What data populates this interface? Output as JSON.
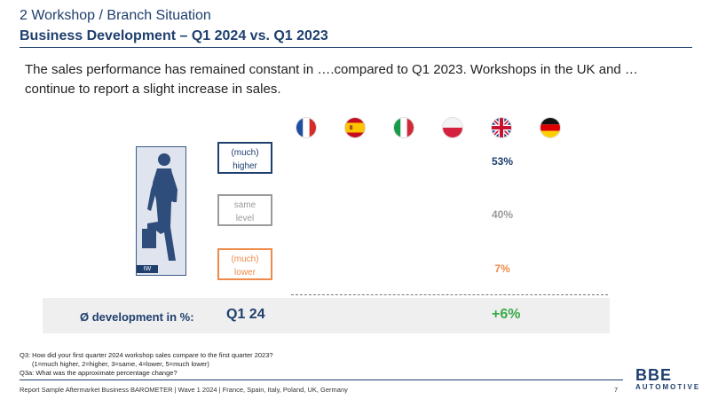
{
  "header": {
    "section_title": "2 Workshop / Branch Situation",
    "slide_title": "Business Development – Q1 2024 vs. Q1 2023"
  },
  "intro_text": "The sales performance has remained constant in ….compared to Q1 2023. Workshops in the UK and … continue to report a slight increase in sales.",
  "flags": [
    "france-flag-icon",
    "spain-flag-icon",
    "italy-flag-icon",
    "poland-flag-icon",
    "uk-flag-icon",
    "germany-flag-icon"
  ],
  "worker_figure": {
    "icon": "workshop-worker-icon",
    "tag": "IW"
  },
  "categories": [
    {
      "line1": "(much)",
      "line2": "higher",
      "value": "53%",
      "color": "#1f3f6e"
    },
    {
      "line1": "same",
      "line2": "level",
      "value": "40%",
      "color": "#9b9b9b"
    },
    {
      "line1": "(much)",
      "line2": "lower",
      "value": "7%",
      "color": "#ee8a4a"
    }
  ],
  "development": {
    "label": "Ø development in %:",
    "period": "Q1 24",
    "value": "+6%",
    "value_color": "#3aaa48"
  },
  "notes": [
    "Q3: How did your first quarter 2024 workshop sales compare to the first quarter 2023?",
    "(1=much higher, 2=higher, 3=same, 4=lower, 5=much lower)",
    "Q3a: What was the approximate percentage change?"
  ],
  "logo": {
    "main": "BBE",
    "sub": "AUTOMOTIVE"
  },
  "footer": {
    "text": "Report Sample Aftermarket Business BAROMETER | Wave 1 2024 | France, Spain, Italy, Poland, UK, Germany",
    "page": "7"
  }
}
